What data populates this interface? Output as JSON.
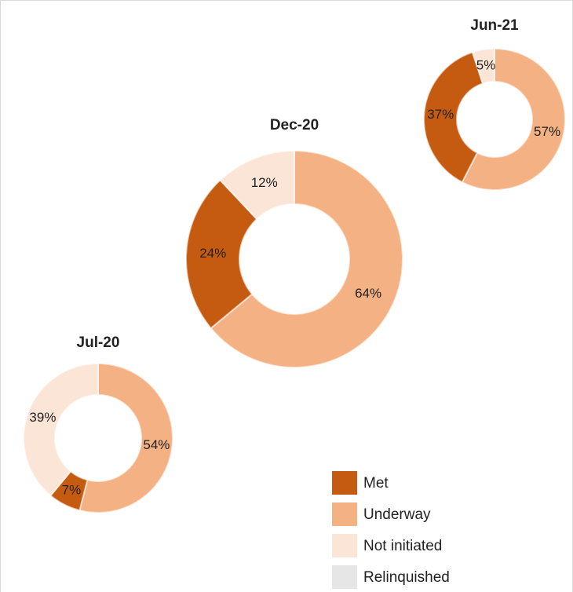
{
  "chart_data": [
    {
      "type": "donut",
      "title": "Jul-20",
      "categories": [
        "Underway",
        "Met",
        "Not initiated"
      ],
      "values": [
        54,
        7,
        39
      ],
      "value_labels": [
        "54%",
        "7%",
        "39%"
      ],
      "colors": [
        "#F4B183",
        "#C55A11",
        "#FBE5D6"
      ]
    },
    {
      "type": "donut",
      "title": "Dec-20",
      "categories": [
        "Underway",
        "Met",
        "Not initiated"
      ],
      "values": [
        64,
        24,
        12
      ],
      "value_labels": [
        "64%",
        "24%",
        "12%"
      ],
      "colors": [
        "#F4B183",
        "#C55A11",
        "#FBE5D6"
      ]
    },
    {
      "type": "donut",
      "title": "Jun-21",
      "categories": [
        "Underway",
        "Met",
        "Not initiated"
      ],
      "values": [
        57,
        37,
        5
      ],
      "value_labels": [
        "57%",
        "37%",
        "5%"
      ],
      "colors": [
        "#F4B183",
        "#C55A11",
        "#FBE5D6"
      ]
    }
  ],
  "legend": {
    "position": "lower right",
    "items": [
      {
        "name": "Met",
        "color": "#C55A11"
      },
      {
        "name": "Underway",
        "color": "#F4B183"
      },
      {
        "name": "Not initiated",
        "color": "#FBE5D6"
      },
      {
        "name": "Relinquished",
        "color": "#E7E6E6"
      }
    ]
  }
}
